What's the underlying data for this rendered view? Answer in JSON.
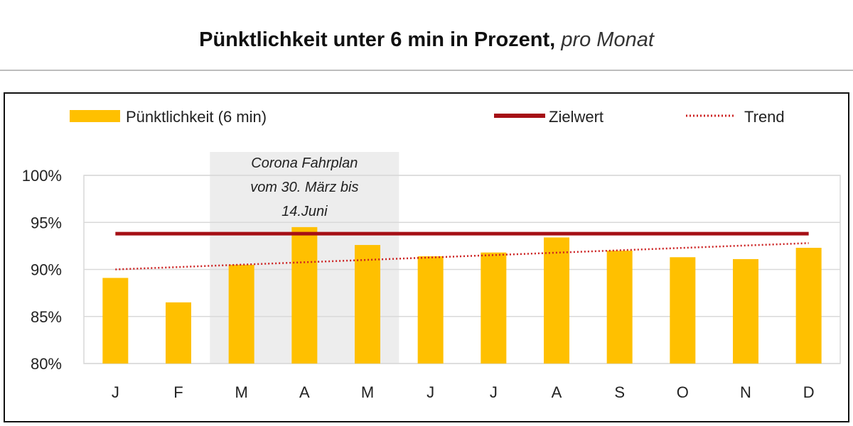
{
  "header": {
    "title_main": "Pünktlichkeit unter 6 min in Prozent,",
    "title_sub": "pro Monat"
  },
  "legend": {
    "bars_label": "Pünktlichkeit (6 min)",
    "target_label": "Zielwert",
    "trend_label": "Trend"
  },
  "annotation": {
    "lines": [
      "Corona Fahrplan",
      "vom 30. März bis",
      "14.Juni"
    ],
    "start_category": "M",
    "end_category": "J"
  },
  "colors": {
    "bar": "#FFC000",
    "target": "#A50F15",
    "trend": "#CC2222",
    "band": "#EDEDED",
    "grid": "#D9D9D9"
  },
  "chart_data": {
    "type": "bar",
    "categories": [
      "J",
      "F",
      "M",
      "A",
      "M",
      "J",
      "J",
      "A",
      "S",
      "O",
      "N",
      "D"
    ],
    "series": [
      {
        "name": "Pünktlichkeit (6 min)",
        "values": [
          89.1,
          86.5,
          90.5,
          94.5,
          92.6,
          91.4,
          91.8,
          93.4,
          92.0,
          91.3,
          91.1,
          92.3
        ]
      }
    ],
    "target": {
      "name": "Zielwert",
      "value": 93.8
    },
    "trend": {
      "name": "Trend",
      "start": 90.0,
      "end": 92.8
    },
    "ylim": [
      80,
      100
    ],
    "yticks": [
      80,
      85,
      90,
      95,
      100
    ],
    "ytick_labels": [
      "80%",
      "85%",
      "90%",
      "95%",
      "100%"
    ],
    "grid": true,
    "legend_position": "top"
  }
}
